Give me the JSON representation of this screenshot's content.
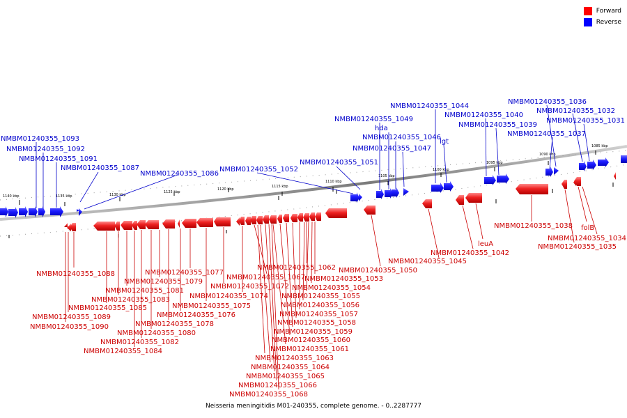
{
  "legend": {
    "forward_label": "Forward",
    "reverse_label": "Reverse",
    "forward_color": "#ff0000",
    "reverse_color": "#0000ff"
  },
  "caption": "Neisseria meningitidis M01-240355, complete genome. - 0..2287777",
  "scale_ticks": [
    "1140 kbp",
    "1135 kbp",
    "1130 kbp",
    "1125 kbp",
    "1120 kbp",
    "1115 kbp",
    "1110 kbp",
    "1105 kbp",
    "1100 kbp",
    "1095 kbp",
    "1090 kbp",
    "1085 kbp"
  ],
  "reverse_labels": [
    "NMBM01240355_1093",
    "NMBM01240355_1092",
    "NMBM01240355_1091",
    "NMBM01240355_1087",
    "NMBM01240355_1086",
    "NMBM01240355_1052",
    "NMBM01240355_1051",
    "NMBM01240355_1049",
    "hda",
    "NMBM01240355_1046",
    "NMBM01240355_1047",
    "lgt",
    "NMBM01240355_1044",
    "NMBM01240355_1040",
    "NMBM01240355_1039",
    "NMBM01240355_1036",
    "NMBM01240355_1032",
    "NMBM01240355_1037",
    "NMBM01240355_1031"
  ],
  "forward_labels": [
    "NMBM01240355_1088",
    "NMBM01240355_1089",
    "NMBM01240355_1090",
    "NMBM01240355_1085",
    "NMBM01240355_1083",
    "NMBM01240355_1081",
    "NMBM01240355_1084",
    "NMBM01240355_1082",
    "NMBM01240355_1080",
    "NMBM01240355_1079",
    "NMBM01240355_1078",
    "NMBM01240355_1077",
    "NMBM01240355_1076",
    "NMBM01240355_1075",
    "NMBM01240355_1074",
    "NMBM01240355_1072",
    "NMBM01240355_1067",
    "NMBM01240355_1062",
    "NMBM01240355_1063",
    "NMBM01240355_1064",
    "NMBM01240355_1065",
    "NMBM01240355_1066",
    "NMBM01240355_1068",
    "NMBM01240355_1061",
    "NMBM01240355_1060",
    "NMBM01240355_1059",
    "NMBM01240355_1058",
    "NMBM01240355_1057",
    "NMBM01240355_1056",
    "NMBM01240355_1055",
    "NMBM01240355_1054",
    "NMBM01240355_1053",
    "NMBM01240355_1050",
    "NMBM01240355_1045",
    "NMBM01240355_1042",
    "leuA",
    "NMBM01240355_1038",
    "folB",
    "NMBM01240355_1034",
    "NMBM01240355_1035"
  ]
}
